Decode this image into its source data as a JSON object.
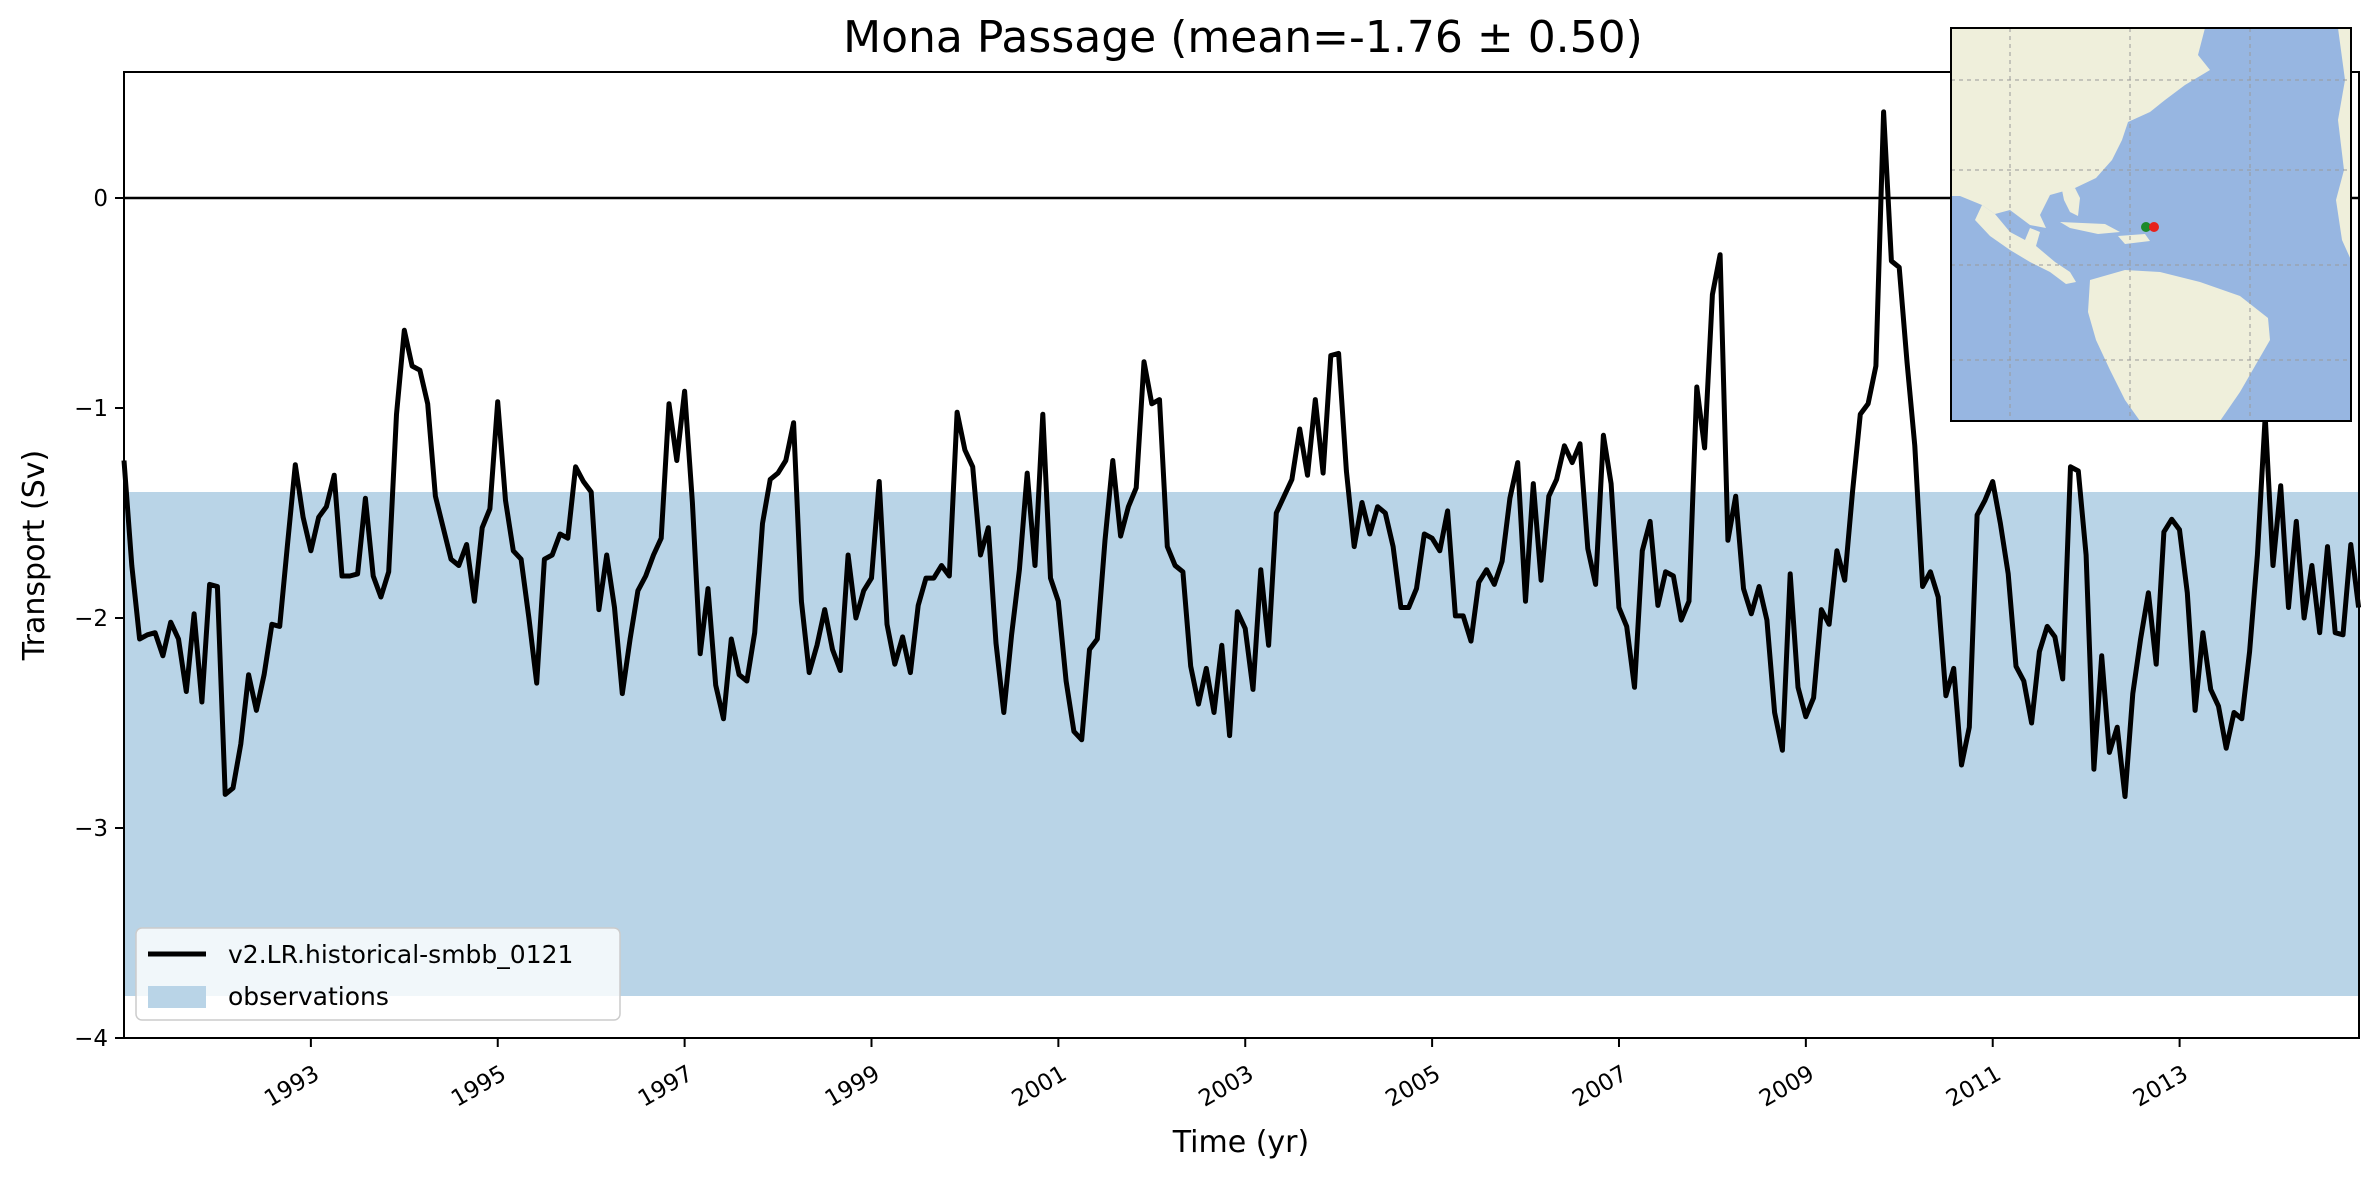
{
  "chart_data": {
    "type": "line",
    "title": "Mona Passage (mean=-1.76 ± 0.50)",
    "xlabel": "Time (yr)",
    "ylabel": "Transport (Sv)",
    "xlim": [
      1991.0,
      2014.92
    ],
    "ylim": [
      -4.0,
      0.6
    ],
    "x_ticks": [
      1993,
      1995,
      1997,
      1999,
      2001,
      2003,
      2005,
      2007,
      2009,
      2011,
      2013
    ],
    "y_ticks": [
      0,
      -1,
      -2,
      -3,
      -4
    ],
    "y_tick_labels": [
      "0",
      "−1",
      "−2",
      "−3",
      "−4"
    ],
    "zero_line": 0,
    "grid": false,
    "legend_position": "lower-left",
    "colors": {
      "model": "#000000",
      "observations": "#b9d4e7",
      "inset_ocean": "#97b6e1",
      "inset_land": "#efefdb",
      "marker_red": "#e8211c",
      "marker_green": "#1d8a2a"
    },
    "series": [
      {
        "name": "v2.LR.historical-smbb_0121",
        "start_year": 1991.0,
        "step_years": 0.08333,
        "values": [
          -1.25,
          -1.75,
          -2.1,
          -2.08,
          -2.07,
          -2.18,
          -2.02,
          -2.1,
          -2.35,
          -1.98,
          -2.4,
          -1.84,
          -1.85,
          -2.84,
          -2.81,
          -2.6,
          -2.27,
          -2.44,
          -2.27,
          -2.03,
          -2.04,
          -1.65,
          -1.27,
          -1.52,
          -1.68,
          -1.52,
          -1.47,
          -1.32,
          -1.8,
          -1.8,
          -1.79,
          -1.43,
          -1.8,
          -1.9,
          -1.78,
          -1.03,
          -0.63,
          -0.8,
          -0.82,
          -0.98,
          -1.42,
          -1.57,
          -1.72,
          -1.75,
          -1.65,
          -1.92,
          -1.57,
          -1.48,
          -0.97,
          -1.44,
          -1.68,
          -1.72,
          -2.0,
          -2.31,
          -1.72,
          -1.7,
          -1.6,
          -1.62,
          -1.28,
          -1.35,
          -1.4,
          -1.96,
          -1.7,
          -1.95,
          -2.36,
          -2.1,
          -1.87,
          -1.8,
          -1.7,
          -1.62,
          -0.98,
          -1.25,
          -0.92,
          -1.45,
          -2.17,
          -1.86,
          -2.32,
          -2.48,
          -2.1,
          -2.27,
          -2.3,
          -2.07,
          -1.55,
          -1.34,
          -1.31,
          -1.25,
          -1.07,
          -1.92,
          -2.26,
          -2.13,
          -1.96,
          -2.15,
          -2.25,
          -1.7,
          -2.0,
          -1.87,
          -1.81,
          -1.35,
          -2.03,
          -2.22,
          -2.09,
          -2.26,
          -1.94,
          -1.81,
          -1.81,
          -1.75,
          -1.8,
          -1.02,
          -1.2,
          -1.28,
          -1.7,
          -1.57,
          -2.12,
          -2.45,
          -2.08,
          -1.77,
          -1.31,
          -1.75,
          -1.03,
          -1.81,
          -1.92,
          -2.3,
          -2.54,
          -2.58,
          -2.15,
          -2.1,
          -1.63,
          -1.25,
          -1.61,
          -1.47,
          -1.38,
          -0.78,
          -0.98,
          -0.96,
          -1.66,
          -1.75,
          -1.78,
          -2.23,
          -2.41,
          -2.24,
          -2.45,
          -2.13,
          -2.56,
          -1.97,
          -2.05,
          -2.34,
          -1.77,
          -2.13,
          -1.5,
          -1.42,
          -1.34,
          -1.1,
          -1.32,
          -0.96,
          -1.31,
          -0.75,
          -0.74,
          -1.3,
          -1.66,
          -1.45,
          -1.6,
          -1.47,
          -1.5,
          -1.66,
          -1.95,
          -1.95,
          -1.86,
          -1.6,
          -1.62,
          -1.68,
          -1.49,
          -1.99,
          -1.99,
          -2.11,
          -1.83,
          -1.77,
          -1.84,
          -1.73,
          -1.43,
          -1.26,
          -1.92,
          -1.36,
          -1.82,
          -1.42,
          -1.34,
          -1.18,
          -1.26,
          -1.17,
          -1.67,
          -1.84,
          -1.13,
          -1.36,
          -1.95,
          -2.04,
          -2.33,
          -1.68,
          -1.54,
          -1.94,
          -1.78,
          -1.8,
          -2.01,
          -1.92,
          -0.9,
          -1.19,
          -0.46,
          -0.27,
          -1.63,
          -1.42,
          -1.86,
          -1.98,
          -1.85,
          -2.01,
          -2.45,
          -2.63,
          -1.79,
          -2.33,
          -2.47,
          -2.38,
          -1.96,
          -2.03,
          -1.68,
          -1.82,
          -1.4,
          -1.03,
          -0.98,
          -0.8,
          0.41,
          -0.3,
          -0.33,
          -0.78,
          -1.18,
          -1.85,
          -1.78,
          -1.9,
          -2.37,
          -2.24,
          -2.7,
          -2.52,
          -1.51,
          -1.44,
          -1.35,
          -1.55,
          -1.79,
          -2.23,
          -2.3,
          -2.5,
          -2.16,
          -2.04,
          -2.09,
          -2.29,
          -1.28,
          -1.3,
          -1.7,
          -2.72,
          -2.18,
          -2.64,
          -2.52,
          -2.85,
          -2.36,
          -2.1,
          -1.88,
          -2.22,
          -1.59,
          -1.53,
          -1.58,
          -1.88,
          -2.44,
          -2.07,
          -2.34,
          -2.42,
          -2.62,
          -2.45,
          -2.48,
          -2.16,
          -1.7,
          -1.04,
          -1.75,
          -1.37,
          -1.95,
          -1.54,
          -2.0,
          -1.75,
          -2.07,
          -1.66,
          -2.07,
          -2.08,
          -1.65,
          -1.95
        ]
      }
    ],
    "observations": {
      "name": "observations",
      "y_range": [
        -3.8,
        -1.4
      ]
    },
    "inset": {
      "type": "map",
      "region": "Americas and Atlantic",
      "markers": [
        "green-marker",
        "red-marker"
      ]
    }
  }
}
